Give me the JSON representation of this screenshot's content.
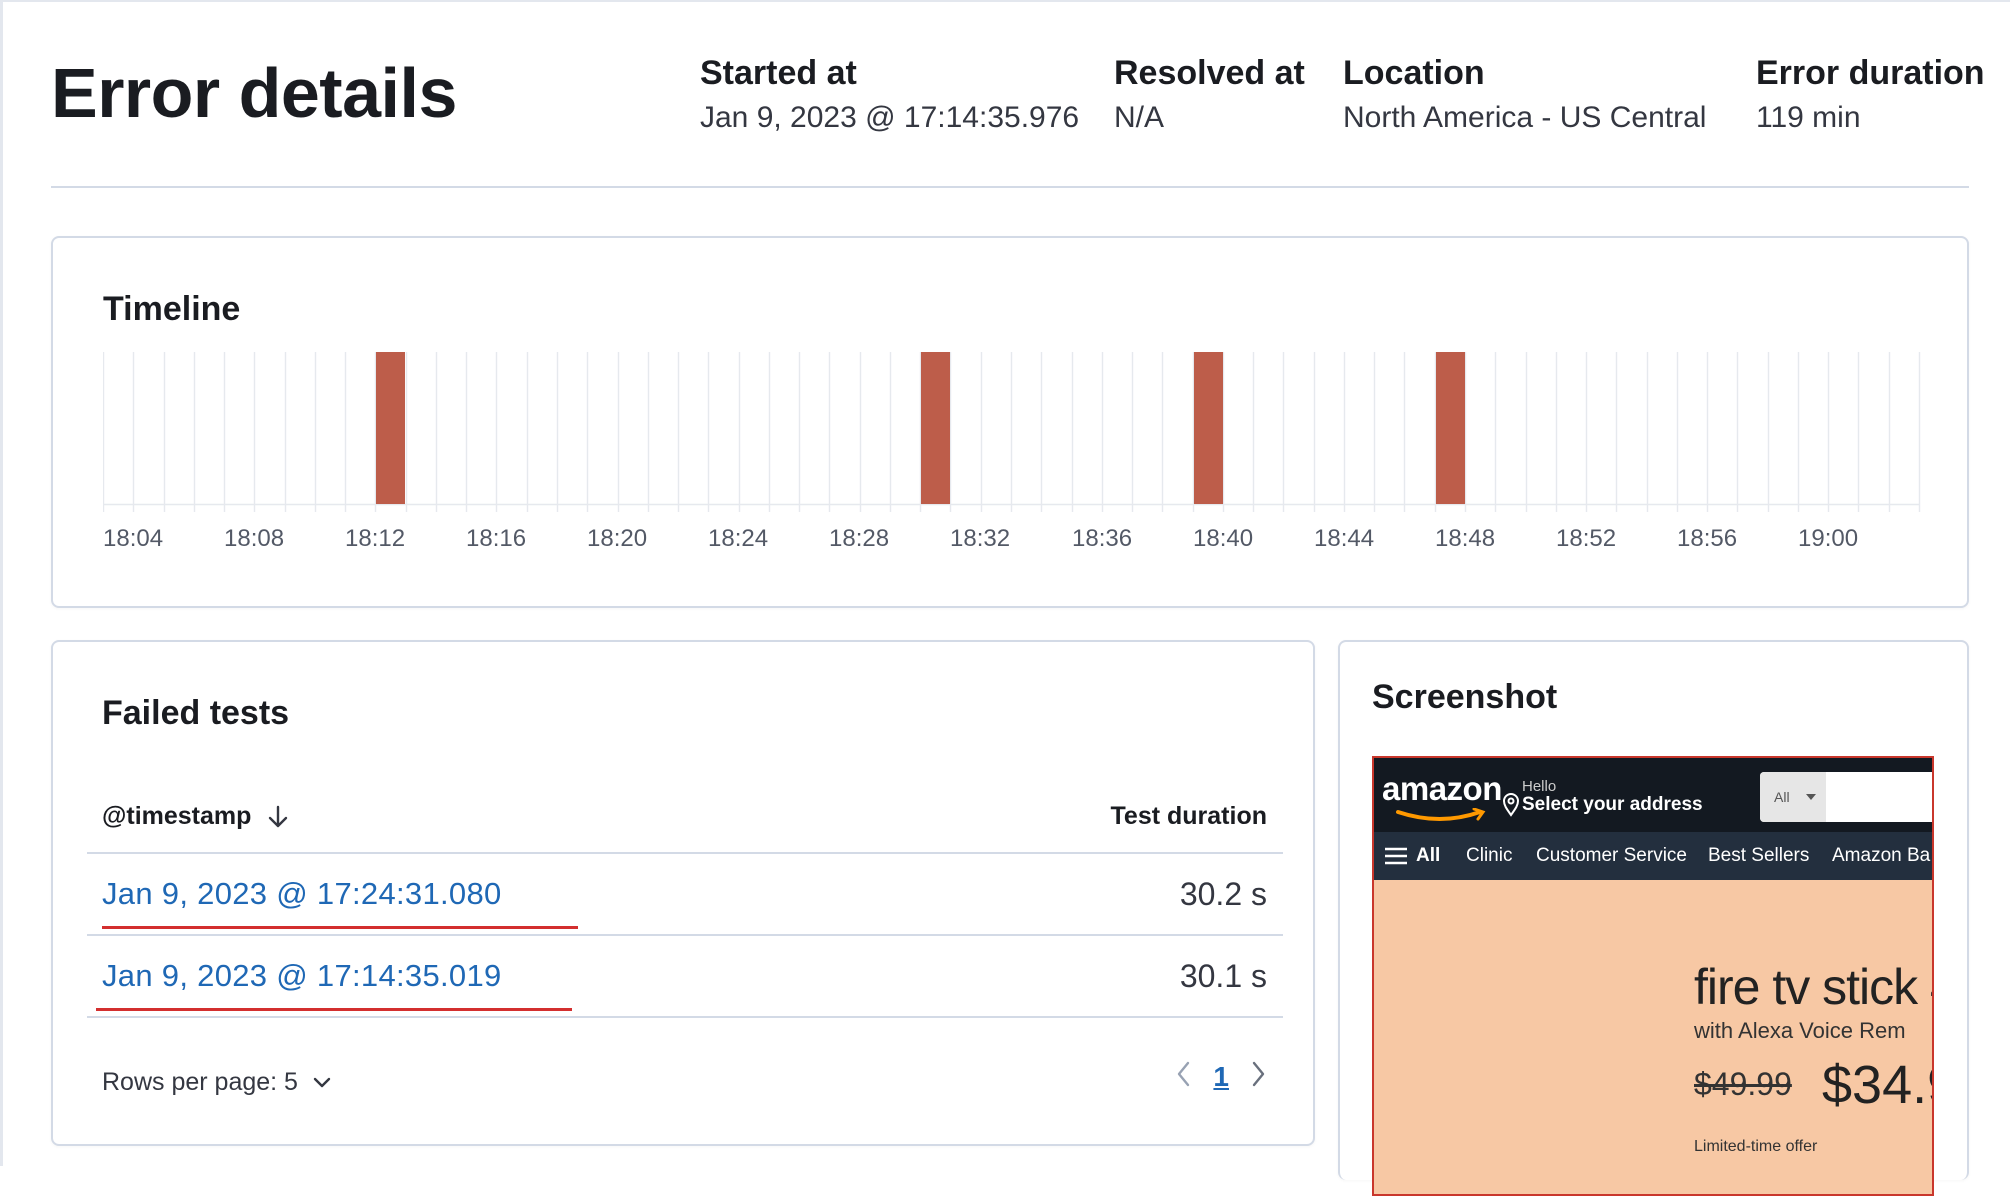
{
  "header": {
    "title": "Error details",
    "started_label": "Started at",
    "started_value": "Jan 9, 2023 @ 17:14:35.976",
    "resolved_label": "Resolved at",
    "resolved_value": "N/A",
    "location_label": "Location",
    "location_value": "North America - US Central",
    "duration_label": "Error duration",
    "duration_value": "119 min"
  },
  "timeline": {
    "title": "Timeline",
    "tick_labels": [
      "18:04",
      "18:08",
      "18:12",
      "18:16",
      "18:20",
      "18:24",
      "18:28",
      "18:32",
      "18:36",
      "18:40",
      "18:44",
      "18:48",
      "18:52",
      "18:56",
      "19:00"
    ],
    "error_color": "#bd5d4a",
    "grid_color": "#e6e9ee"
  },
  "chart_data": {
    "type": "bar",
    "title": "Timeline",
    "x_unit": "minutes",
    "x_range": [
      "18:04",
      "19:04"
    ],
    "slot_minutes": 1,
    "error_slots": [
      "18:13",
      "18:31",
      "18:40",
      "18:48"
    ],
    "tick_labels": [
      "18:04",
      "18:08",
      "18:12",
      "18:16",
      "18:20",
      "18:24",
      "18:28",
      "18:32",
      "18:36",
      "18:40",
      "18:44",
      "18:48",
      "18:52",
      "18:56",
      "19:00"
    ],
    "grid": true
  },
  "failed": {
    "title": "Failed tests",
    "col_timestamp": "@timestamp",
    "col_duration": "Test duration",
    "rows": [
      {
        "timestamp": "Jan 9, 2023 @ 17:24:31.080",
        "duration": "30.2 s"
      },
      {
        "timestamp": "Jan 9, 2023 @ 17:14:35.019",
        "duration": "30.1 s"
      }
    ],
    "rows_per_page": "Rows per page: 5",
    "page": "1"
  },
  "screenshot": {
    "title": "Screenshot",
    "logo": "amazon",
    "hello": "Hello",
    "address": "Select your address",
    "search_dept": "All",
    "nav": [
      "All",
      "Clinic",
      "Customer Service",
      "Best Sellers",
      "Amazon Ba"
    ],
    "hero_title": "fire tv stick 4",
    "hero_sub": "with Alexa Voice Rem",
    "price_old": "$49.99",
    "price_new": "$34.9",
    "offer": "Limited-time offer"
  }
}
